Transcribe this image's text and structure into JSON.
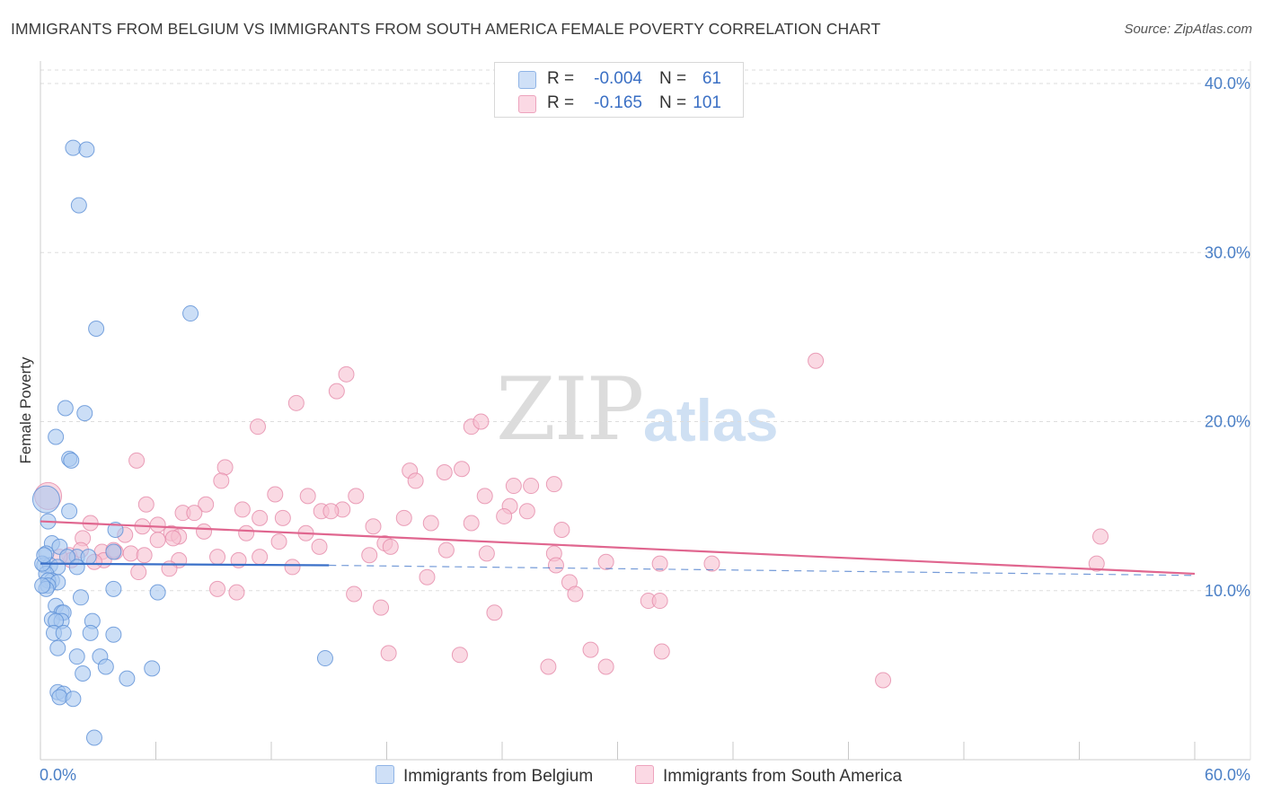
{
  "title": "IMMIGRANTS FROM BELGIUM VS IMMIGRANTS FROM SOUTH AMERICA FEMALE POVERTY CORRELATION CHART",
  "source": "Source: ZipAtlas.com",
  "watermark": {
    "zip": "ZIP",
    "atlas": "atlas"
  },
  "legend": {
    "r_label": "R =",
    "n_label": "N =",
    "rows": [
      {
        "r": "-0.004",
        "n": "61",
        "color": "#a9c8f0"
      },
      {
        "r": "-0.165",
        "n": "101",
        "color": "#f6bfd1"
      }
    ]
  },
  "colors": {
    "belgium_fill": "#a9c8f0",
    "belgium_stroke": "#5b8fd6",
    "belgium_line": "#3a70c8",
    "sa_fill": "#f6bfd1",
    "sa_stroke": "#e58aa9",
    "sa_line": "#e0668f",
    "tick": "#4a7fc6"
  },
  "chart_data": {
    "type": "scatter",
    "title": "IMMIGRANTS FROM BELGIUM VS IMMIGRANTS FROM SOUTH AMERICA FEMALE POVERTY CORRELATION CHART",
    "xlabel": "",
    "ylabel": "Female Poverty",
    "xlim": [
      0,
      60
    ],
    "ylim": [
      0,
      40.8
    ],
    "x_tick_labels": [
      {
        "v": 0,
        "label": "0.0%"
      },
      {
        "v": 60,
        "label": "60.0%"
      }
    ],
    "y_ticks": [
      {
        "v": 10,
        "label": "10.0%"
      },
      {
        "v": 20,
        "label": "20.0%"
      },
      {
        "v": 30,
        "label": "30.0%"
      },
      {
        "v": 40,
        "label": "40.0%"
      }
    ],
    "x_minor_ticks": [
      0,
      6,
      12,
      18,
      24,
      30,
      36,
      42,
      48,
      54,
      60
    ],
    "series": [
      {
        "name": "Immigrants from Belgium",
        "trend": {
          "x0": 0,
          "y0": 11.6,
          "x1": 15,
          "y1": 11.5,
          "dash_to_x": 60,
          "dash_to_y": 10.9
        },
        "points": [
          [
            1.7,
            36.2
          ],
          [
            2.4,
            36.1
          ],
          [
            2.0,
            32.8
          ],
          [
            7.8,
            26.4
          ],
          [
            2.9,
            25.5
          ],
          [
            1.3,
            20.8
          ],
          [
            2.3,
            20.5
          ],
          [
            0.8,
            19.1
          ],
          [
            1.5,
            17.8
          ],
          [
            1.6,
            17.7
          ],
          [
            0.3,
            15.4
          ],
          [
            1.5,
            14.7
          ],
          [
            0.4,
            14.1
          ],
          [
            3.9,
            13.6
          ],
          [
            0.6,
            12.8
          ],
          [
            1.0,
            12.6
          ],
          [
            0.3,
            12.2
          ],
          [
            3.8,
            12.3
          ],
          [
            1.9,
            12.0
          ],
          [
            2.5,
            12.0
          ],
          [
            1.4,
            12.0
          ],
          [
            0.2,
            11.5
          ],
          [
            0.5,
            11.5
          ],
          [
            0.9,
            11.4
          ],
          [
            1.9,
            11.4
          ],
          [
            0.3,
            11.0
          ],
          [
            0.6,
            10.6
          ],
          [
            0.4,
            10.6
          ],
          [
            0.9,
            10.5
          ],
          [
            0.4,
            10.3
          ],
          [
            0.3,
            10.1
          ],
          [
            3.8,
            10.1
          ],
          [
            6.1,
            9.9
          ],
          [
            2.1,
            9.6
          ],
          [
            0.8,
            9.1
          ],
          [
            1.1,
            8.7
          ],
          [
            1.2,
            8.7
          ],
          [
            0.6,
            8.3
          ],
          [
            1.1,
            8.2
          ],
          [
            0.8,
            8.2
          ],
          [
            2.7,
            8.2
          ],
          [
            0.7,
            7.5
          ],
          [
            1.2,
            7.5
          ],
          [
            2.6,
            7.5
          ],
          [
            3.8,
            7.4
          ],
          [
            0.9,
            6.6
          ],
          [
            1.9,
            6.1
          ],
          [
            3.1,
            6.1
          ],
          [
            14.8,
            6.0
          ],
          [
            3.4,
            5.5
          ],
          [
            5.8,
            5.4
          ],
          [
            2.2,
            5.1
          ],
          [
            4.5,
            4.8
          ],
          [
            0.9,
            4.0
          ],
          [
            1.2,
            3.9
          ],
          [
            1.0,
            3.7
          ],
          [
            1.7,
            3.6
          ],
          [
            2.8,
            1.3
          ],
          [
            0.1,
            11.6
          ],
          [
            0.2,
            12.1
          ],
          [
            0.1,
            10.3
          ]
        ]
      },
      {
        "name": "Immigrants from South America",
        "trend": {
          "x0": 0,
          "y0": 14.1,
          "x1": 60,
          "y1": 11.0
        },
        "points": [
          [
            40.3,
            23.6
          ],
          [
            15.9,
            22.8
          ],
          [
            15.4,
            21.8
          ],
          [
            13.3,
            21.1
          ],
          [
            11.3,
            19.7
          ],
          [
            22.4,
            19.7
          ],
          [
            22.9,
            20.0
          ],
          [
            5.0,
            17.7
          ],
          [
            9.6,
            17.3
          ],
          [
            19.2,
            17.1
          ],
          [
            21.0,
            17.0
          ],
          [
            21.9,
            17.2
          ],
          [
            19.5,
            16.5
          ],
          [
            9.4,
            16.5
          ],
          [
            24.6,
            16.2
          ],
          [
            25.5,
            16.2
          ],
          [
            26.7,
            16.3
          ],
          [
            12.2,
            15.7
          ],
          [
            13.9,
            15.6
          ],
          [
            16.4,
            15.6
          ],
          [
            23.1,
            15.6
          ],
          [
            5.5,
            15.1
          ],
          [
            8.6,
            15.1
          ],
          [
            15.7,
            14.8
          ],
          [
            24.4,
            15.0
          ],
          [
            10.5,
            14.8
          ],
          [
            14.6,
            14.7
          ],
          [
            15.1,
            14.7
          ],
          [
            7.4,
            14.6
          ],
          [
            8.0,
            14.6
          ],
          [
            25.3,
            14.7
          ],
          [
            11.4,
            14.3
          ],
          [
            12.6,
            14.3
          ],
          [
            18.9,
            14.3
          ],
          [
            24.1,
            14.4
          ],
          [
            2.6,
            14.0
          ],
          [
            20.3,
            14.0
          ],
          [
            22.4,
            14.0
          ],
          [
            6.1,
            13.9
          ],
          [
            5.3,
            13.8
          ],
          [
            17.3,
            13.8
          ],
          [
            27.1,
            13.6
          ],
          [
            8.5,
            13.5
          ],
          [
            6.8,
            13.4
          ],
          [
            10.7,
            13.4
          ],
          [
            13.8,
            13.4
          ],
          [
            4.4,
            13.3
          ],
          [
            7.2,
            13.2
          ],
          [
            6.9,
            13.1
          ],
          [
            2.2,
            13.1
          ],
          [
            55.1,
            13.2
          ],
          [
            6.1,
            13.0
          ],
          [
            12.4,
            12.9
          ],
          [
            17.9,
            12.8
          ],
          [
            18.2,
            12.6
          ],
          [
            14.5,
            12.6
          ],
          [
            3.2,
            12.3
          ],
          [
            4.7,
            12.2
          ],
          [
            3.9,
            12.3
          ],
          [
            1.5,
            12.1
          ],
          [
            17.1,
            12.1
          ],
          [
            21.1,
            12.4
          ],
          [
            23.2,
            12.2
          ],
          [
            11.4,
            12.0
          ],
          [
            26.7,
            12.2
          ],
          [
            7.2,
            11.8
          ],
          [
            9.2,
            12.0
          ],
          [
            1.6,
            11.8
          ],
          [
            3.3,
            11.8
          ],
          [
            10.3,
            11.8
          ],
          [
            2.8,
            11.7
          ],
          [
            29.4,
            11.7
          ],
          [
            32.2,
            11.6
          ],
          [
            34.9,
            11.6
          ],
          [
            26.8,
            11.5
          ],
          [
            13.1,
            11.4
          ],
          [
            6.7,
            11.3
          ],
          [
            54.9,
            11.6
          ],
          [
            5.1,
            11.1
          ],
          [
            20.1,
            10.8
          ],
          [
            27.5,
            10.5
          ],
          [
            9.2,
            10.1
          ],
          [
            10.2,
            9.9
          ],
          [
            16.3,
            9.8
          ],
          [
            27.8,
            9.8
          ],
          [
            31.6,
            9.4
          ],
          [
            32.2,
            9.4
          ],
          [
            17.7,
            9.0
          ],
          [
            23.6,
            8.7
          ],
          [
            28.6,
            6.5
          ],
          [
            18.1,
            6.3
          ],
          [
            21.8,
            6.2
          ],
          [
            32.3,
            6.4
          ],
          [
            26.4,
            5.5
          ],
          [
            29.4,
            5.5
          ],
          [
            43.8,
            4.7
          ],
          [
            0.4,
            15.6
          ],
          [
            2.1,
            12.4
          ],
          [
            1.0,
            12.0
          ],
          [
            3.8,
            12.4
          ],
          [
            5.4,
            12.1
          ]
        ]
      }
    ]
  },
  "bottom_legend": [
    {
      "label": "Immigrants from Belgium",
      "color": "#a9c8f0"
    },
    {
      "label": "Immigrants from South America",
      "color": "#f6bfd1"
    }
  ]
}
